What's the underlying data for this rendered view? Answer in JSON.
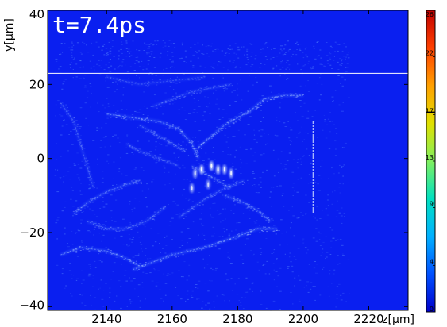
{
  "chart_data": {
    "type": "heatmap",
    "title": "t=7.4ps",
    "xlabel": "z[μm]",
    "ylabel": "y[μm]",
    "xlim": [
      2122,
      2232
    ],
    "ylim": [
      -41,
      40
    ],
    "xticks": [
      2140,
      2160,
      2180,
      2200,
      2220
    ],
    "yticks": [
      40,
      20,
      0,
      -20,
      -40
    ],
    "ytick_labels": [
      "40",
      "20",
      "0",
      "−20",
      "−40"
    ],
    "background_color": "#0a1ff0",
    "highlight_color": "#4f7dff",
    "reference_line_y": 23,
    "filaments": [
      {
        "points": [
          [
            2126,
            -26
          ],
          [
            2132,
            -24
          ],
          [
            2140,
            -25
          ],
          [
            2146,
            -27
          ],
          [
            2150,
            -29
          ]
        ],
        "intensity": 0.8
      },
      {
        "points": [
          [
            2130,
            -15
          ],
          [
            2134,
            -12
          ],
          [
            2140,
            -9
          ],
          [
            2146,
            -7
          ],
          [
            2150,
            -6
          ]
        ],
        "intensity": 0.7
      },
      {
        "points": [
          [
            2134,
            -17
          ],
          [
            2140,
            -19
          ],
          [
            2146,
            -19
          ],
          [
            2152,
            -17
          ],
          [
            2158,
            -13
          ]
        ],
        "intensity": 0.6
      },
      {
        "points": [
          [
            2148,
            -30
          ],
          [
            2160,
            -26
          ],
          [
            2170,
            -24
          ],
          [
            2180,
            -21
          ],
          [
            2186,
            -19
          ],
          [
            2192,
            -19
          ]
        ],
        "intensity": 0.9
      },
      {
        "points": [
          [
            2162,
            -16
          ],
          [
            2170,
            -11
          ],
          [
            2176,
            -8
          ],
          [
            2182,
            -6
          ]
        ],
        "intensity": 0.6
      },
      {
        "points": [
          [
            2176,
            -10
          ],
          [
            2182,
            -12
          ],
          [
            2186,
            -14
          ],
          [
            2190,
            -17
          ]
        ],
        "intensity": 0.7
      },
      {
        "points": [
          [
            2140,
            12
          ],
          [
            2148,
            11
          ],
          [
            2156,
            10
          ],
          [
            2162,
            8
          ],
          [
            2166,
            4
          ],
          [
            2168,
            0
          ]
        ],
        "intensity": 0.8
      },
      {
        "points": [
          [
            2150,
            9
          ],
          [
            2156,
            6
          ],
          [
            2160,
            4
          ],
          [
            2164,
            2
          ]
        ],
        "intensity": 0.6
      },
      {
        "points": [
          [
            2146,
            4
          ],
          [
            2150,
            2
          ],
          [
            2156,
            0
          ],
          [
            2162,
            -2
          ]
        ],
        "intensity": 0.5
      },
      {
        "points": [
          [
            2168,
            3
          ],
          [
            2172,
            6
          ],
          [
            2176,
            9
          ],
          [
            2180,
            11
          ],
          [
            2184,
            13
          ],
          [
            2188,
            16
          ],
          [
            2194,
            17
          ],
          [
            2200,
            17
          ]
        ],
        "intensity": 0.8
      },
      {
        "points": [
          [
            2166,
            -2
          ],
          [
            2170,
            -4
          ],
          [
            2174,
            -6
          ],
          [
            2178,
            -8
          ]
        ],
        "intensity": 0.6
      },
      {
        "points": [
          [
            2154,
            14
          ],
          [
            2160,
            16
          ],
          [
            2166,
            18
          ],
          [
            2172,
            19
          ],
          [
            2178,
            20
          ]
        ],
        "intensity": 0.5
      },
      {
        "points": [
          [
            2126,
            15
          ],
          [
            2130,
            10
          ],
          [
            2132,
            4
          ],
          [
            2134,
            -2
          ],
          [
            2136,
            -8
          ]
        ],
        "intensity": 0.5
      },
      {
        "points": [
          [
            2140,
            22
          ],
          [
            2150,
            20
          ],
          [
            2160,
            21
          ],
          [
            2170,
            22
          ]
        ],
        "intensity": 0.4
      }
    ],
    "hotspots": [
      {
        "x": 2169,
        "y": -3,
        "intensity": 1.0
      },
      {
        "x": 2172,
        "y": -2,
        "intensity": 1.0
      },
      {
        "x": 2174,
        "y": -3,
        "intensity": 0.95
      },
      {
        "x": 2176,
        "y": -3,
        "intensity": 0.9
      },
      {
        "x": 2178,
        "y": -4,
        "intensity": 0.85
      },
      {
        "x": 2167,
        "y": -4,
        "intensity": 0.8
      },
      {
        "x": 2166,
        "y": -8,
        "intensity": 0.8
      },
      {
        "x": 2171,
        "y": -7,
        "intensity": 0.7
      }
    ],
    "vertical_streak": {
      "x": 2203,
      "y_from": -15,
      "y_to": 10
    },
    "colorbar": {
      "min": 0,
      "max": 26,
      "ticks": [
        0,
        4,
        9,
        13,
        17,
        22,
        26
      ],
      "stops": [
        "#0000cc",
        "#0050ff",
        "#00b0ff",
        "#00e0c0",
        "#80f060",
        "#e0e000",
        "#ffa000",
        "#ff4000",
        "#c00000"
      ],
      "marker_value": 17.2
    }
  }
}
